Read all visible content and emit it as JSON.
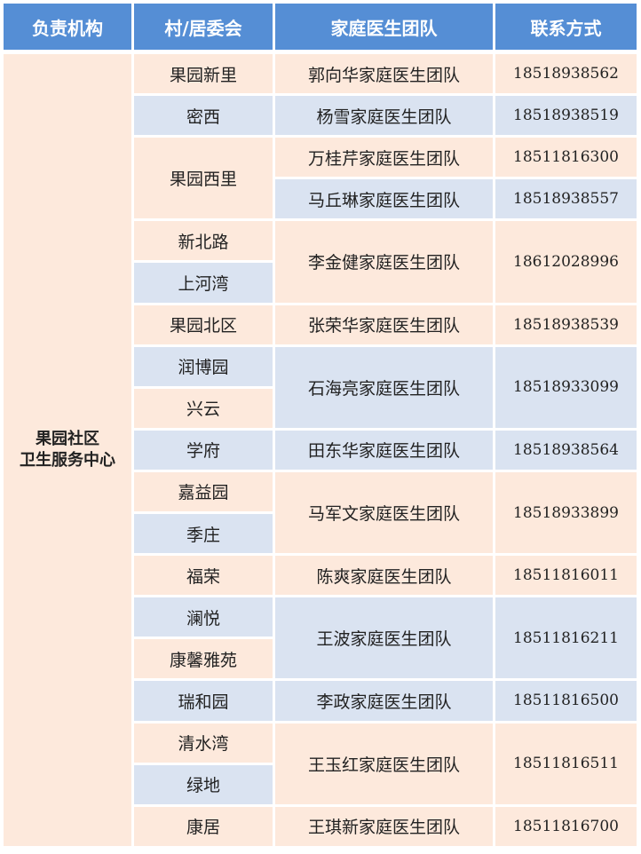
{
  "colors": {
    "header": "#558ed5",
    "peach": "#fde9dc",
    "blue": "#dae3f1"
  },
  "headers": [
    "负责机构",
    "村/居委会",
    "家庭医生团队",
    "联系方式"
  ],
  "organization": {
    "line1": "果园社区",
    "line2": "卫生服务中心"
  },
  "villages": [
    {
      "name": "果园新里",
      "span": 1,
      "color": "peach"
    },
    {
      "name": "密西",
      "span": 1,
      "color": "blue"
    },
    {
      "name": "果园西里",
      "span": 2,
      "color": "peach"
    },
    {
      "name": "新北路",
      "span": 1,
      "color": "peach"
    },
    {
      "name": "上河湾",
      "span": 1,
      "color": "blue"
    },
    {
      "name": "果园北区",
      "span": 1,
      "color": "peach"
    },
    {
      "name": "润博园",
      "span": 1,
      "color": "blue"
    },
    {
      "name": "兴云",
      "span": 1,
      "color": "peach"
    },
    {
      "name": "学府",
      "span": 1,
      "color": "blue"
    },
    {
      "name": "嘉益园",
      "span": 1,
      "color": "peach"
    },
    {
      "name": "季庄",
      "span": 1,
      "color": "blue"
    },
    {
      "name": "福荣",
      "span": 1,
      "color": "peach"
    },
    {
      "name": "澜悦",
      "span": 1,
      "color": "blue"
    },
    {
      "name": "康馨雅苑",
      "span": 1,
      "color": "peach"
    },
    {
      "name": "瑞和园",
      "span": 1,
      "color": "blue"
    },
    {
      "name": "清水湾",
      "span": 1,
      "color": "peach"
    },
    {
      "name": "绿地",
      "span": 1,
      "color": "blue"
    },
    {
      "name": "康居",
      "span": 1,
      "color": "peach"
    }
  ],
  "teams": [
    {
      "team": "郭向华家庭医生团队",
      "phone": "18518938562",
      "span": 1,
      "color": "peach"
    },
    {
      "team": "杨雪家庭医生团队",
      "phone": "18518938519",
      "span": 1,
      "color": "blue"
    },
    {
      "team": "万桂芹家庭医生团队",
      "phone": "18511816300",
      "span": 1,
      "color": "peach"
    },
    {
      "team": "马丘琳家庭医生团队",
      "phone": "18518938557",
      "span": 1,
      "color": "blue"
    },
    {
      "team": "李金健家庭医生团队",
      "phone": "18612028996",
      "span": 2,
      "color": "peach"
    },
    {
      "team": "张荣华家庭医生团队",
      "phone": "18518938539",
      "span": 1,
      "color": "peach"
    },
    {
      "team": "石海亮家庭医生团队",
      "phone": "18518933099",
      "span": 2,
      "color": "blue"
    },
    {
      "team": "田东华家庭医生团队",
      "phone": "18518938564",
      "span": 1,
      "color": "blue"
    },
    {
      "team": "马军文家庭医生团队",
      "phone": "18518933899",
      "span": 2,
      "color": "peach"
    },
    {
      "team": "陈爽家庭医生团队",
      "phone": "18511816011",
      "span": 1,
      "color": "peach"
    },
    {
      "team": "王波家庭医生团队",
      "phone": "18511816211",
      "span": 2,
      "color": "blue"
    },
    {
      "team": "李政家庭医生团队",
      "phone": "18511816500",
      "span": 1,
      "color": "blue"
    },
    {
      "team": "王玉红家庭医生团队",
      "phone": "18511816511",
      "span": 2,
      "color": "peach"
    },
    {
      "team": "王琪新家庭医生团队",
      "phone": "18511816700",
      "span": 1,
      "color": "peach"
    }
  ]
}
